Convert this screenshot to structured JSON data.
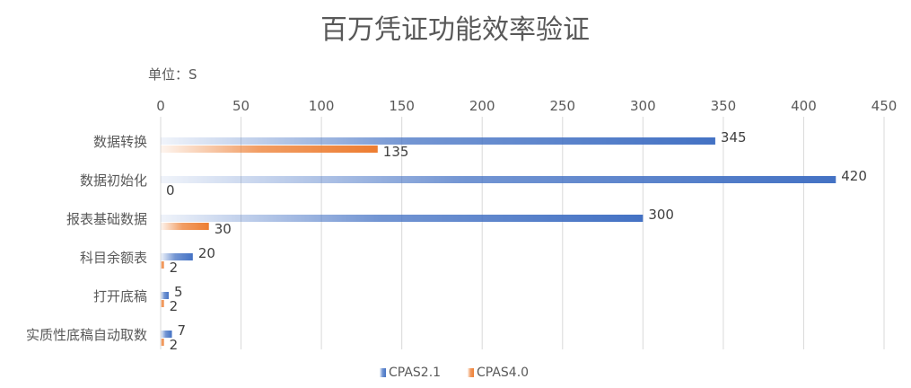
{
  "chart_data": {
    "type": "bar",
    "orientation": "horizontal",
    "title": "百万凭证功能效率验证",
    "unit_label": "单位：S",
    "xlim": [
      0,
      450
    ],
    "xticks": [
      0,
      50,
      100,
      150,
      200,
      250,
      300,
      350,
      400,
      450
    ],
    "xaxis_position": "top",
    "grid": true,
    "legend_position": "bottom",
    "categories": [
      "数据转换",
      "数据初始化",
      "报表基础数据",
      "科目余额表",
      "打开底稿",
      "实质性底稿自动取数"
    ],
    "series": [
      {
        "name": "CPAS2.1",
        "values": [
          345,
          420,
          300,
          20,
          5,
          7
        ],
        "color": "#4472C4"
      },
      {
        "name": "CPAS4.0",
        "values": [
          135,
          0,
          30,
          2,
          2,
          2
        ],
        "color": "#ED7D31"
      }
    ]
  }
}
